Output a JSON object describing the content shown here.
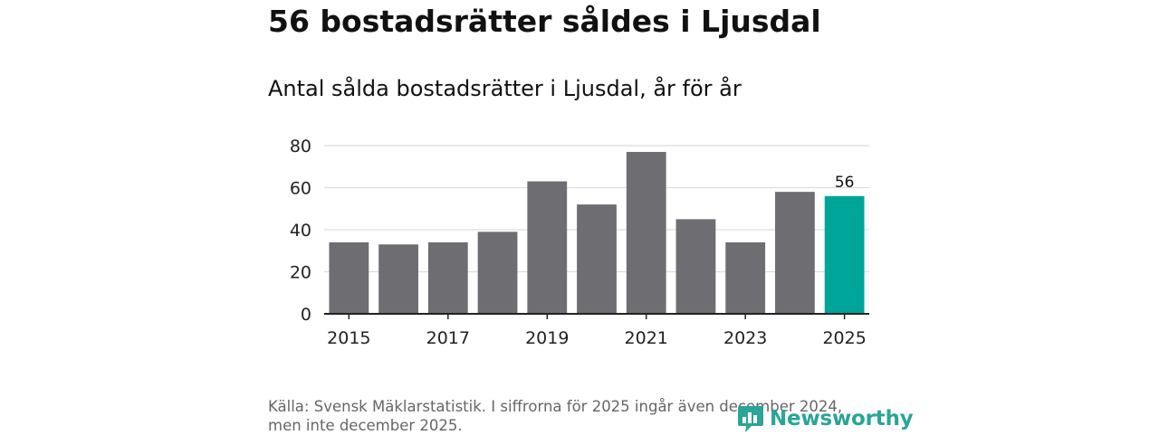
{
  "title": "56 bostadsrätter såldes i Ljusdal",
  "subtitle": "Antal sålda bostadsrätter i Ljusdal, år för år",
  "source_lines": [
    "Källa: Svensk Mäklarstatistik. I siffrorna för 2025 ingår även december 2024,",
    "men inte december 2025."
  ],
  "logo_text": "Newsworthy",
  "colors": {
    "bar": "#6e6d72",
    "highlight": "#00a59a",
    "grid": "#dddddd",
    "axis": "#222222"
  },
  "chart_data": {
    "type": "bar",
    "title": "Antal sålda bostadsrätter i Ljusdal, år för år",
    "categories": [
      "2015",
      "2016",
      "2017",
      "2018",
      "2019",
      "2020",
      "2021",
      "2022",
      "2023",
      "2024",
      "2025"
    ],
    "values": [
      34,
      33,
      34,
      39,
      63,
      52,
      77,
      45,
      34,
      58,
      56
    ],
    "highlight_index": 10,
    "data_labels": [
      {
        "index": 10,
        "text": "56"
      }
    ],
    "x_tick_labels": [
      "2015",
      "2017",
      "2019",
      "2021",
      "2023",
      "2025"
    ],
    "y_ticks": [
      0,
      20,
      40,
      60,
      80
    ],
    "ylim": [
      0,
      80
    ],
    "xlabel": "",
    "ylabel": "",
    "grid": true
  }
}
